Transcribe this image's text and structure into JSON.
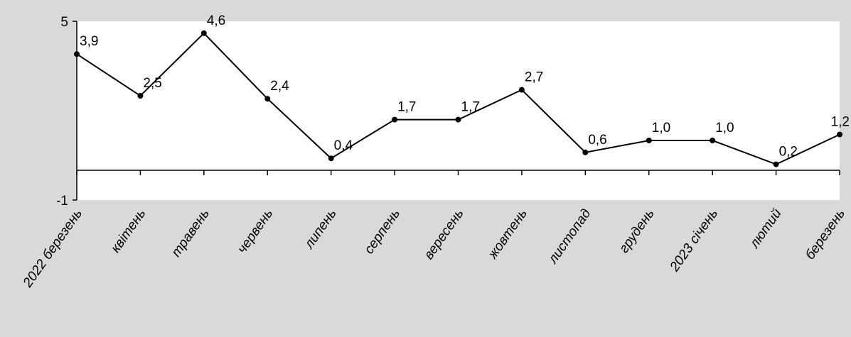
{
  "chart_data": {
    "type": "line",
    "title": "",
    "xlabel": "",
    "ylabel": "",
    "ylim": [
      -1,
      5
    ],
    "y_tick_labels": [
      "5",
      "-1"
    ],
    "grid": false,
    "legend": "none",
    "colors": {
      "background": "#d9d9d9",
      "plot_background": "#ffffff",
      "line": "#000000"
    },
    "categories": [
      "2022 березень",
      "квітень",
      "травень",
      "червень",
      "липень",
      "серпень",
      "вересень",
      "жовтень",
      "листопад",
      "грудень",
      "2023 січень",
      "лютий",
      "березень"
    ],
    "series": [
      {
        "values": [
          3.9,
          2.5,
          4.6,
          2.4,
          0.4,
          1.7,
          1.7,
          2.7,
          0.6,
          1.0,
          1.0,
          0.2,
          1.2
        ],
        "labels": [
          "3,9",
          "2,5",
          "4,6",
          "2,4",
          "0,4",
          "1,7",
          "1,7",
          "2,7",
          "0,6",
          "1,0",
          "1,0",
          "0,2",
          "1,2"
        ]
      }
    ]
  }
}
